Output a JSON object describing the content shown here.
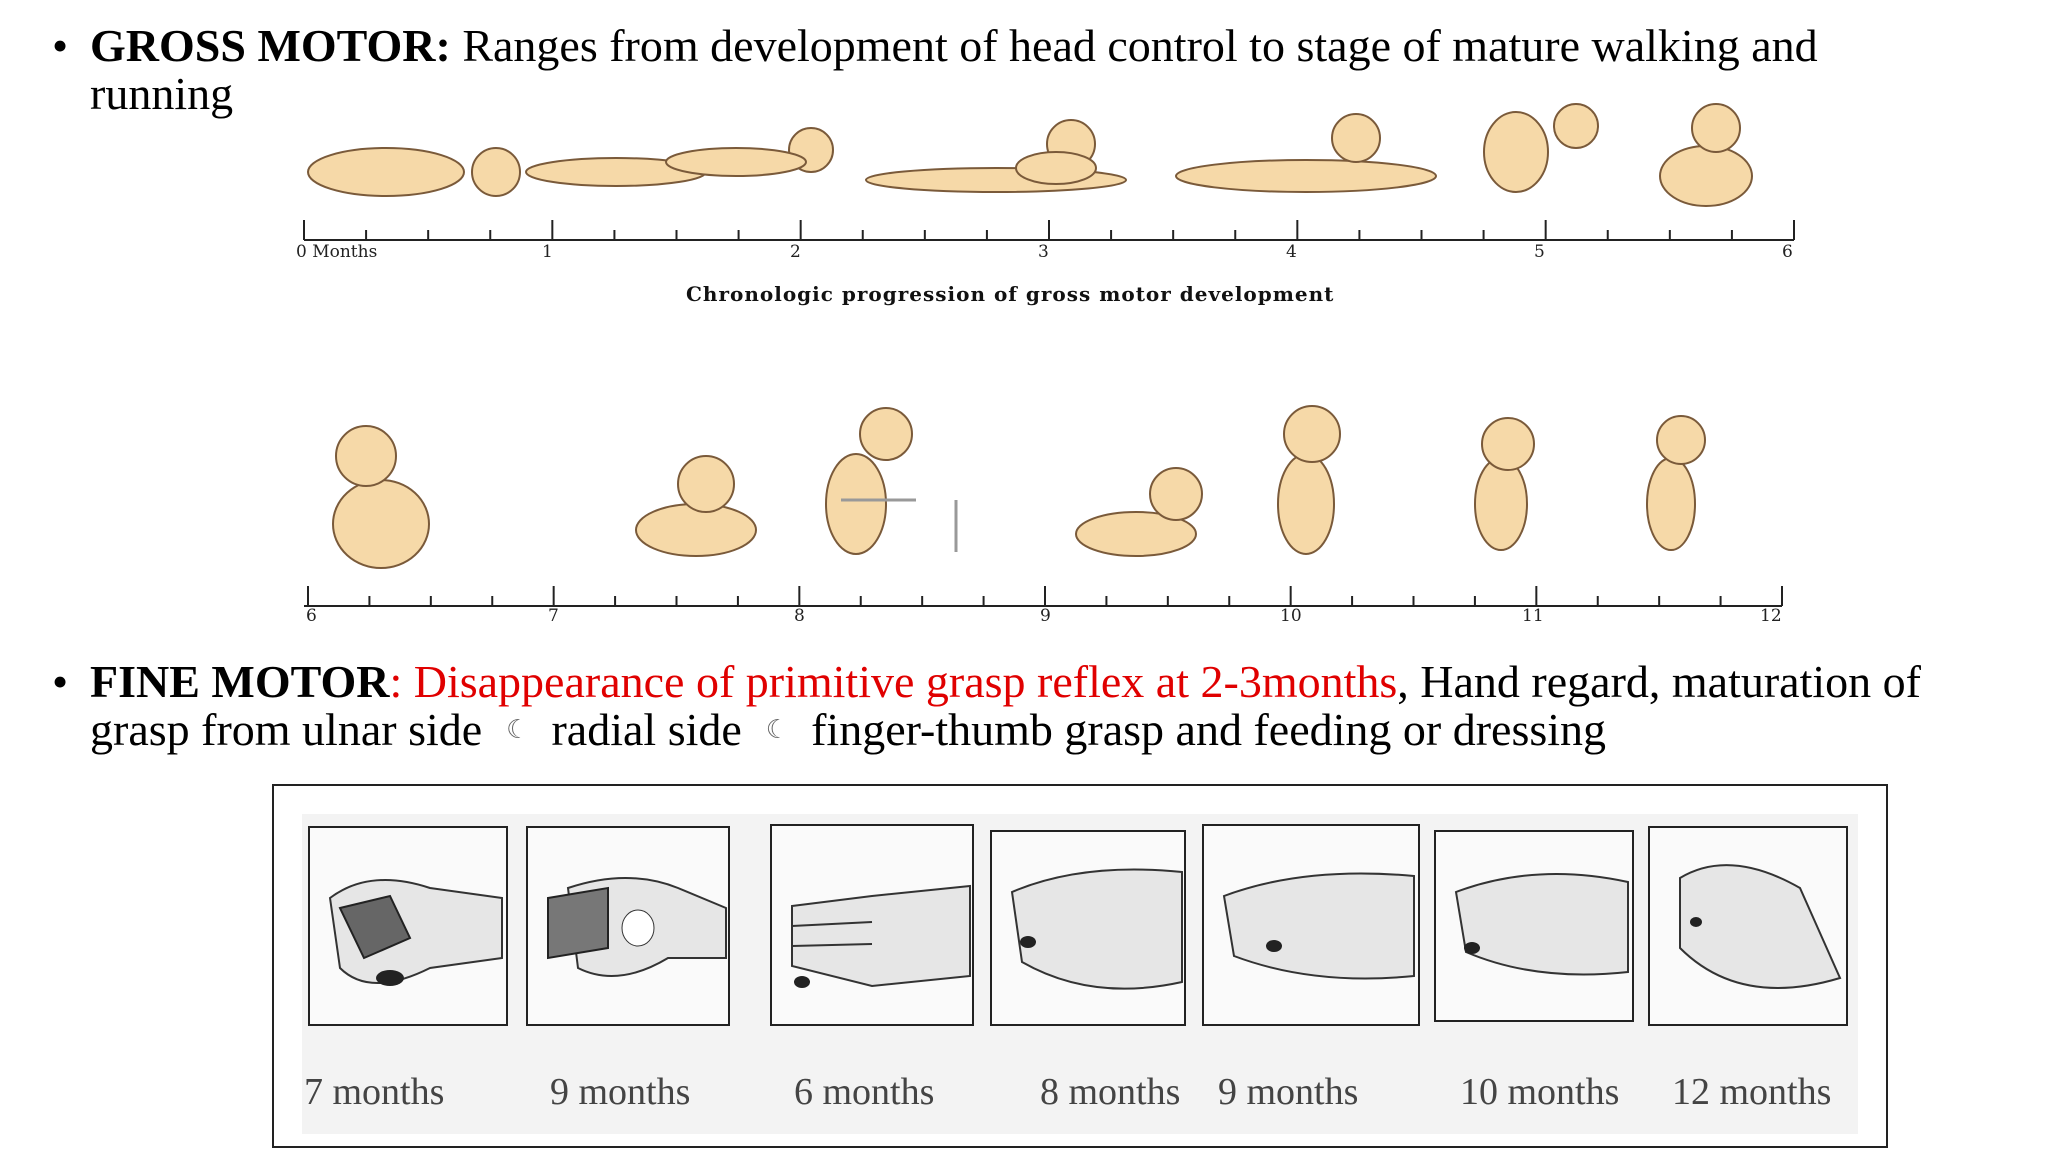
{
  "gross_motor": {
    "bullet": "•",
    "heading": "GROSS MOTOR:",
    "text_line1": "Ranges from development of head control to stage of mature walking and",
    "text_line2": "running"
  },
  "timeline_top": {
    "ticks": [
      "0 Months",
      "1",
      "2",
      "3",
      "4",
      "5",
      "6"
    ],
    "caption": "Chronologic progression of gross motor development"
  },
  "timeline_bottom": {
    "ticks": [
      "6",
      "7",
      "8",
      "9",
      "10",
      "11",
      "12"
    ]
  },
  "fine_motor": {
    "bullet": "•",
    "heading": "FINE MOTOR",
    "colon": ":",
    "red_text": " Disappearance of primitive grasp reflex at 2-3months",
    "text_after_red": ", Hand regard, maturation of",
    "line2_part1": "grasp from ulnar side",
    "line2_part2": "radial side",
    "line2_part3": "finger-thumb grasp and feeding or dressing",
    "arrow_symbol": "☾"
  },
  "hand_panels": {
    "labels": [
      "7 months",
      "9 months",
      "6 months",
      "8 months",
      "9 months",
      "10 months",
      "12 months"
    ]
  },
  "colors": {
    "skin": "#f6d9a8",
    "outline": "#7a5a3a",
    "red": "#e00000"
  }
}
